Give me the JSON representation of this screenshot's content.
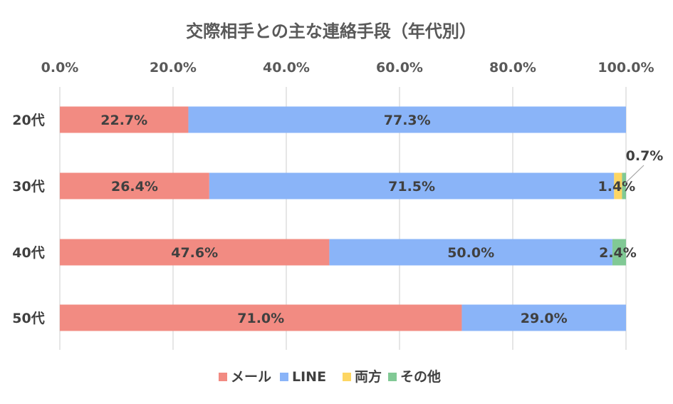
{
  "chart_data": {
    "type": "bar",
    "orientation": "horizontal",
    "stacked": true,
    "title": "交際相手との主な連絡手段（年代別）",
    "categories": [
      "20代",
      "30代",
      "40代",
      "50代"
    ],
    "series": [
      {
        "name": "メール",
        "color": "#f28b82",
        "values": [
          22.7,
          26.4,
          47.6,
          71.0
        ],
        "labels": [
          "22.7%",
          "26.4%",
          "47.6%",
          "71.0%"
        ]
      },
      {
        "name": "LINE",
        "color": "#8ab4f8",
        "values": [
          77.3,
          71.5,
          50.0,
          29.0
        ],
        "labels": [
          "77.3%",
          "71.5%",
          "50.0%",
          "29.0%"
        ]
      },
      {
        "name": "両方",
        "color": "#fdd663",
        "values": [
          0,
          1.4,
          0,
          0
        ],
        "labels": [
          "",
          "1.4%",
          "",
          ""
        ]
      },
      {
        "name": "その他",
        "color": "#81c995",
        "values": [
          0,
          0.7,
          2.4,
          0
        ],
        "labels": [
          "",
          "0.7%",
          "2.4%",
          ""
        ]
      }
    ],
    "xlim": [
      0,
      100
    ],
    "xticks": [
      "0.0%",
      "20.0%",
      "40.0%",
      "60.0%",
      "80.0%",
      "100.0%"
    ],
    "axis_position": "top",
    "grid": true,
    "legend_position": "bottom"
  }
}
